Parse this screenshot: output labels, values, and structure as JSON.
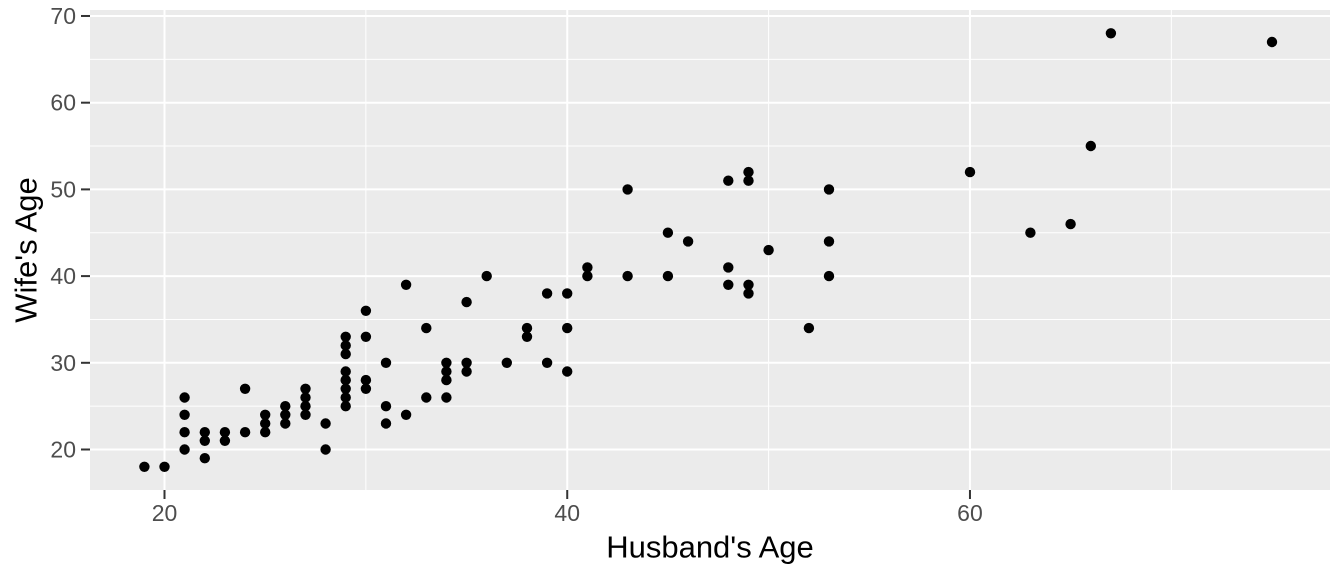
{
  "chart_data": {
    "type": "scatter",
    "title": "",
    "xlabel": "Husband's Age",
    "ylabel": "Wife's Age",
    "x_ticks": [
      20,
      40,
      60
    ],
    "y_ticks": [
      20,
      30,
      40,
      50,
      60,
      70
    ],
    "x_minor_gridlines": [
      30,
      50,
      70
    ],
    "y_minor_gridlines": [
      25,
      35,
      45,
      55,
      65
    ],
    "xlim": [
      16.3,
      77.88
    ],
    "ylim": [
      15.33,
      70.69
    ],
    "grid": true,
    "legend": false,
    "points": [
      [
        19,
        18
      ],
      [
        20,
        18
      ],
      [
        21,
        20
      ],
      [
        21,
        22
      ],
      [
        21,
        24
      ],
      [
        21,
        26
      ],
      [
        22,
        19
      ],
      [
        22,
        21
      ],
      [
        22,
        22
      ],
      [
        23,
        21
      ],
      [
        23,
        22
      ],
      [
        24,
        22
      ],
      [
        24,
        27
      ],
      [
        25,
        22
      ],
      [
        25,
        23
      ],
      [
        25,
        24
      ],
      [
        26,
        23
      ],
      [
        26,
        24
      ],
      [
        26,
        25
      ],
      [
        27,
        24
      ],
      [
        27,
        25
      ],
      [
        27,
        26
      ],
      [
        27,
        27
      ],
      [
        28,
        20
      ],
      [
        28,
        23
      ],
      [
        29,
        25
      ],
      [
        29,
        26
      ],
      [
        29,
        27
      ],
      [
        29,
        28
      ],
      [
        29,
        29
      ],
      [
        29,
        31
      ],
      [
        29,
        32
      ],
      [
        29,
        33
      ],
      [
        30,
        27
      ],
      [
        30,
        28
      ],
      [
        30,
        33
      ],
      [
        30,
        36
      ],
      [
        31,
        23
      ],
      [
        31,
        25
      ],
      [
        31,
        30
      ],
      [
        32,
        24
      ],
      [
        32,
        39
      ],
      [
        33,
        26
      ],
      [
        33,
        34
      ],
      [
        34,
        26
      ],
      [
        34,
        28
      ],
      [
        34,
        29
      ],
      [
        34,
        30
      ],
      [
        35,
        29
      ],
      [
        35,
        30
      ],
      [
        35,
        37
      ],
      [
        36,
        40
      ],
      [
        37,
        30
      ],
      [
        38,
        33
      ],
      [
        38,
        34
      ],
      [
        39,
        30
      ],
      [
        39,
        38
      ],
      [
        40,
        29
      ],
      [
        40,
        34
      ],
      [
        40,
        38
      ],
      [
        41,
        40
      ],
      [
        41,
        41
      ],
      [
        43,
        40
      ],
      [
        43,
        50
      ],
      [
        45,
        40
      ],
      [
        45,
        45
      ],
      [
        46,
        44
      ],
      [
        48,
        39
      ],
      [
        48,
        41
      ],
      [
        48,
        51
      ],
      [
        49,
        38
      ],
      [
        49,
        39
      ],
      [
        49,
        51
      ],
      [
        49,
        52
      ],
      [
        50,
        43
      ],
      [
        52,
        34
      ],
      [
        53,
        40
      ],
      [
        53,
        44
      ],
      [
        53,
        50
      ],
      [
        60,
        52
      ],
      [
        63,
        45
      ],
      [
        65,
        46
      ],
      [
        66,
        55
      ],
      [
        67,
        68
      ],
      [
        75,
        67
      ]
    ]
  },
  "style": {
    "panel_background": "#EBEBEB",
    "gridline_color": "#FFFFFF",
    "point_color": "#000000",
    "tick_label_color": "#4D4D4D",
    "tick_mark_color": "#333333",
    "axis_title_color": "#000000",
    "outer_background": "#FFFFFF"
  }
}
